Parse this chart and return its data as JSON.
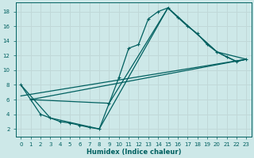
{
  "xlabel": "Humidex (Indice chaleur)",
  "bg_color": "#cde8e8",
  "grid_color": "#c0d8d8",
  "line_color": "#006060",
  "xlim": [
    -0.5,
    23.5
  ],
  "ylim": [
    1.0,
    19.2
  ],
  "xticks": [
    0,
    1,
    2,
    3,
    4,
    5,
    6,
    7,
    8,
    9,
    10,
    11,
    12,
    13,
    14,
    15,
    16,
    17,
    18,
    19,
    20,
    21,
    22,
    23
  ],
  "yticks": [
    2,
    4,
    6,
    8,
    10,
    12,
    14,
    16,
    18
  ],
  "main_x": [
    0,
    1,
    2,
    3,
    4,
    5,
    6,
    7,
    8,
    9,
    10,
    11,
    12,
    13,
    14,
    15,
    16,
    17,
    18,
    19,
    20,
    21,
    22,
    23
  ],
  "main_y": [
    8,
    6,
    4,
    3.5,
    3.0,
    2.8,
    2.5,
    2.2,
    2.0,
    5.5,
    9.0,
    13.0,
    13.5,
    17.0,
    18.0,
    18.5,
    17.2,
    16.0,
    15.0,
    13.5,
    12.5,
    11.8,
    11.2,
    11.5
  ],
  "env1_x": [
    0,
    3,
    8,
    15,
    20,
    23
  ],
  "env1_y": [
    8,
    3.5,
    2.0,
    18.5,
    12.5,
    11.5
  ],
  "env2_x": [
    1,
    9,
    15,
    20,
    22,
    23
  ],
  "env2_y": [
    6,
    5.5,
    18.5,
    12.5,
    11.2,
    11.5
  ],
  "trend_x": [
    0,
    23
  ],
  "trend_y": [
    6.5,
    11.5
  ],
  "trend2_x": [
    1,
    23
  ],
  "trend2_y": [
    6.0,
    11.5
  ]
}
